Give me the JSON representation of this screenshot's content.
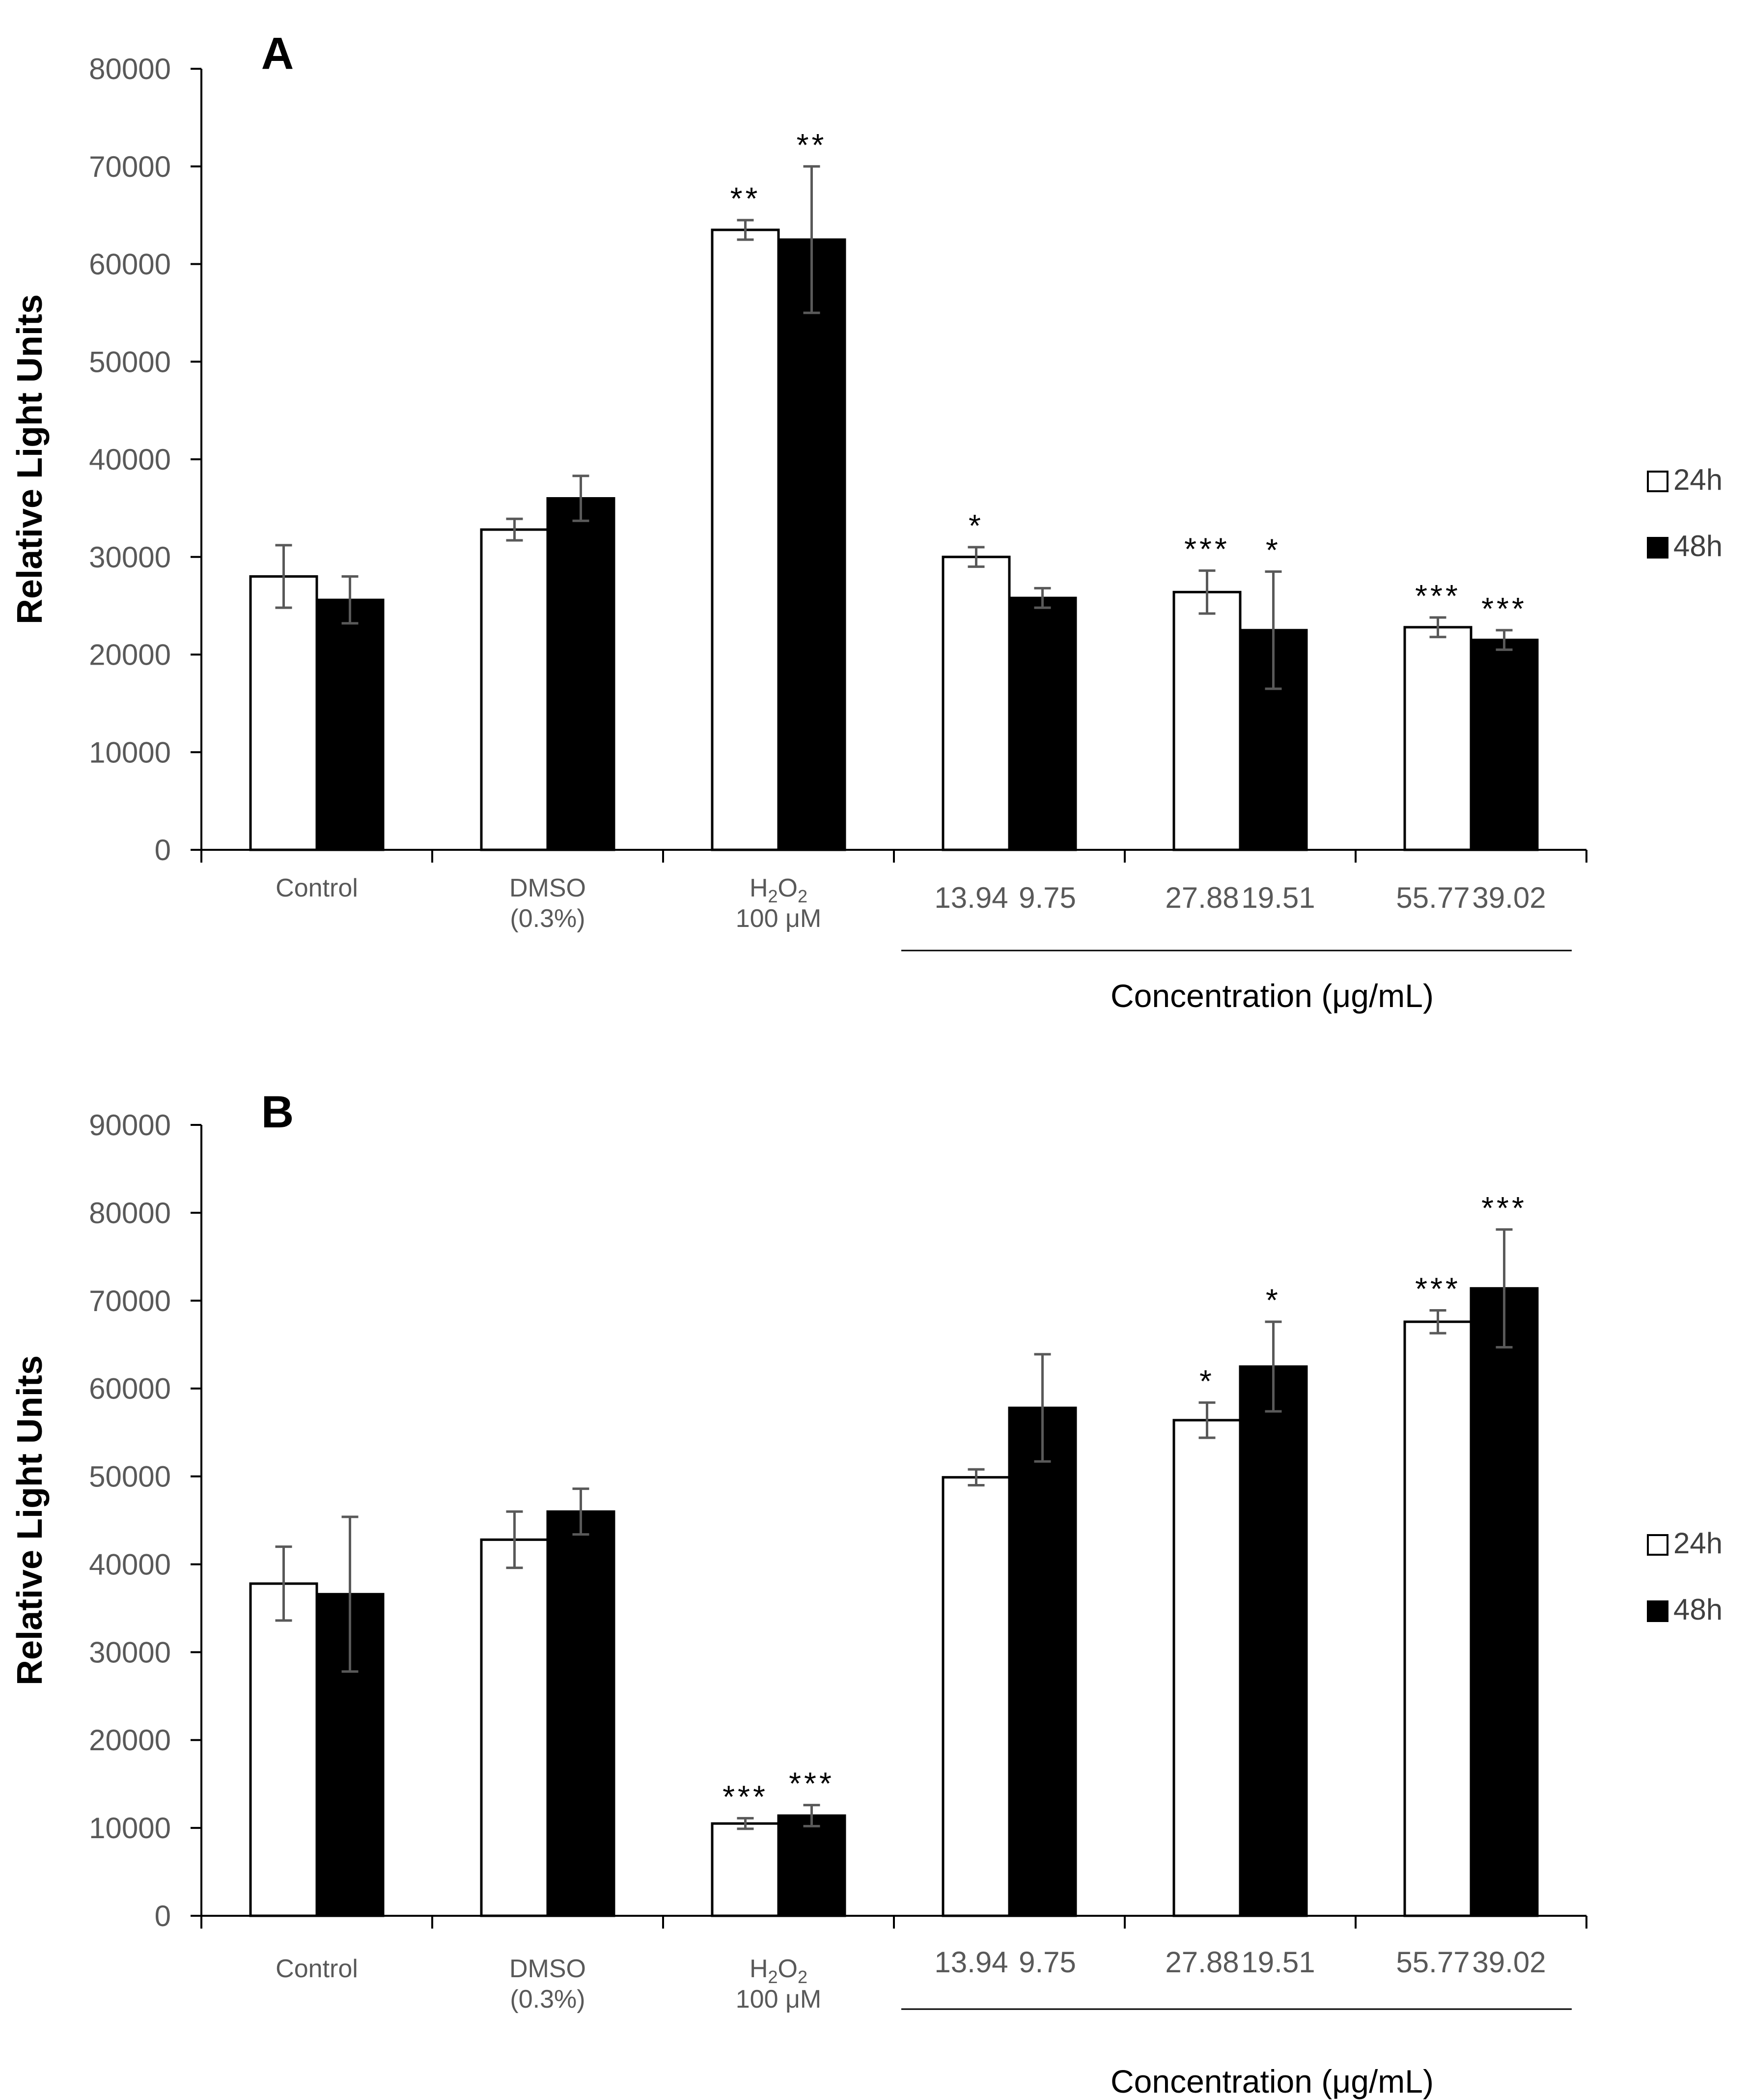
{
  "chart_data": [
    {
      "type": "bar",
      "panel_label": "A",
      "ylabel": "Relative Light Units",
      "xlabel": "Concentration (μg/mL)",
      "ylim": [
        0,
        80000
      ],
      "yticks": [
        0,
        10000,
        20000,
        30000,
        40000,
        50000,
        60000,
        70000,
        80000
      ],
      "groups": [
        {
          "label_lines": [
            "Control"
          ],
          "bar_labels": null
        },
        {
          "label_lines": [
            "DMSO",
            "(0.3%)"
          ],
          "bar_labels": null
        },
        {
          "label_lines": [
            "H2O2",
            "100 μM"
          ],
          "bar_labels": null
        },
        {
          "label_lines": null,
          "bar_labels": [
            "13.94",
            "9.75"
          ]
        },
        {
          "label_lines": null,
          "bar_labels": [
            "27.88",
            "19.51"
          ]
        },
        {
          "label_lines": null,
          "bar_labels": [
            "55.77",
            "39.02"
          ]
        }
      ],
      "series": [
        {
          "name": "24h",
          "color": "#ffffff",
          "values": [
            28000,
            32800,
            63500,
            30000,
            26400,
            22800
          ],
          "errors": [
            3200,
            1100,
            1000,
            1000,
            2200,
            1000
          ],
          "significance": [
            "",
            "",
            "**",
            "*",
            "***",
            "***"
          ]
        },
        {
          "name": "48h",
          "color": "#000000",
          "values": [
            25600,
            36000,
            62500,
            25800,
            22500,
            21500
          ],
          "errors": [
            2400,
            2300,
            7500,
            1000,
            6000,
            1000
          ],
          "significance": [
            "",
            "",
            "**",
            "",
            "*",
            "***"
          ]
        }
      ],
      "legend": [
        "24h",
        "48h"
      ],
      "legend_position": "right"
    },
    {
      "type": "bar",
      "panel_label": "B",
      "ylabel": "Relative Light Units",
      "xlabel": "Concentration (μg/mL)",
      "ylim": [
        0,
        90000
      ],
      "yticks": [
        0,
        10000,
        20000,
        30000,
        40000,
        50000,
        60000,
        70000,
        80000,
        90000
      ],
      "groups": [
        {
          "label_lines": [
            "Control"
          ],
          "bar_labels": null
        },
        {
          "label_lines": [
            "DMSO",
            "(0.3%)"
          ],
          "bar_labels": null
        },
        {
          "label_lines": [
            "H2O2",
            "100 μM"
          ],
          "bar_labels": null
        },
        {
          "label_lines": null,
          "bar_labels": [
            "13.94",
            "9.75"
          ]
        },
        {
          "label_lines": null,
          "bar_labels": [
            "27.88",
            "19.51"
          ]
        },
        {
          "label_lines": null,
          "bar_labels": [
            "55.77",
            "39.02"
          ]
        }
      ],
      "series": [
        {
          "name": "24h",
          "color": "#ffffff",
          "values": [
            37800,
            42800,
            10500,
            49900,
            56400,
            67600
          ],
          "errors": [
            4200,
            3200,
            600,
            900,
            2000,
            1300
          ],
          "significance": [
            "",
            "",
            "***",
            "",
            "*",
            "***"
          ]
        },
        {
          "name": "48h",
          "color": "#000000",
          "values": [
            36600,
            46000,
            11400,
            57800,
            62500,
            71400
          ],
          "errors": [
            8800,
            2600,
            1200,
            6100,
            5100,
            6700
          ],
          "significance": [
            "",
            "",
            "***",
            "",
            "*",
            "***"
          ]
        }
      ],
      "legend": [
        "24h",
        "48h"
      ],
      "legend_position": "right"
    }
  ]
}
